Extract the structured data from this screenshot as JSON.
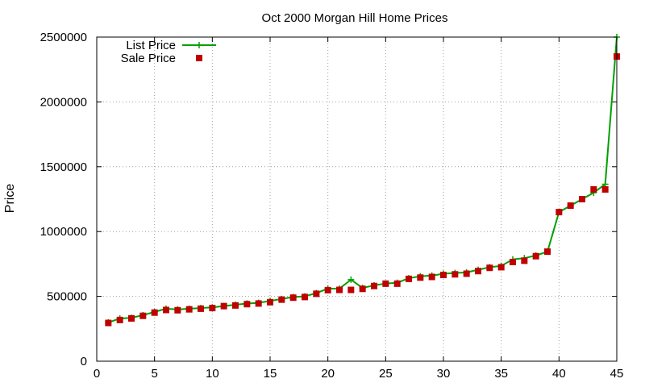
{
  "chart_data": {
    "type": "line",
    "title": "Oct 2000 Morgan Hill Home Prices",
    "xlabel": "",
    "ylabel": "Price",
    "xlim": [
      0,
      45
    ],
    "ylim": [
      0,
      2500000
    ],
    "xticks": [
      0,
      5,
      10,
      15,
      20,
      25,
      30,
      35,
      40,
      45
    ],
    "yticks": [
      0,
      500000,
      1000000,
      1500000,
      2000000,
      2500000
    ],
    "grid": true,
    "legend_position": "top-left",
    "x": [
      1,
      2,
      3,
      4,
      5,
      6,
      7,
      8,
      9,
      10,
      11,
      12,
      13,
      14,
      15,
      16,
      17,
      18,
      19,
      20,
      21,
      22,
      23,
      24,
      25,
      26,
      27,
      28,
      29,
      30,
      31,
      32,
      33,
      34,
      35,
      36,
      37,
      38,
      39,
      40,
      41,
      42,
      43,
      44,
      45
    ],
    "series": [
      {
        "name": "List Price",
        "style": "linespoints",
        "color": "#00a000",
        "marker": "plus",
        "values": [
          299000,
          329000,
          335000,
          355000,
          380000,
          405000,
          399000,
          405000,
          410000,
          415000,
          425000,
          435000,
          445000,
          450000,
          465000,
          480000,
          495000,
          500000,
          525000,
          560000,
          560000,
          629000,
          565000,
          585000,
          599000,
          605000,
          640000,
          655000,
          660000,
          675000,
          680000,
          685000,
          705000,
          725000,
          735000,
          785000,
          795000,
          815000,
          845000,
          1150000,
          1200000,
          1250000,
          1300000,
          1365000,
          2500000
        ]
      },
      {
        "name": "Sale Price",
        "style": "points",
        "color": "#c00000",
        "marker": "square",
        "values": [
          295000,
          318000,
          330000,
          350000,
          375000,
          395000,
          393000,
          400000,
          405000,
          410000,
          425000,
          430000,
          440000,
          445000,
          455000,
          475000,
          490000,
          495000,
          520000,
          548000,
          550000,
          550000,
          558000,
          580000,
          598000,
          598000,
          635000,
          645000,
          650000,
          665000,
          670000,
          675000,
          695000,
          720000,
          725000,
          765000,
          775000,
          810000,
          845000,
          1150000,
          1200000,
          1250000,
          1325000,
          1325000,
          2350000
        ]
      }
    ]
  }
}
